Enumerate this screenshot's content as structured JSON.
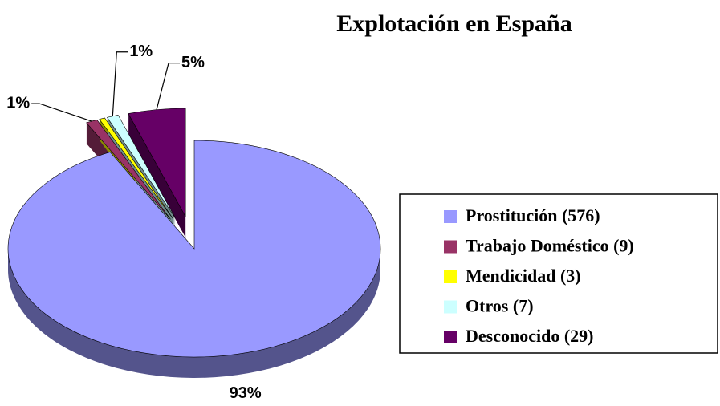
{
  "chart_data": {
    "type": "pie",
    "title": "Explotación en España",
    "series": [
      {
        "name": "Prostitución (576)",
        "color": "#9999ff"
      },
      {
        "name": "Trabajo Doméstico (9)",
        "color": "#993366"
      },
      {
        "name": "Mendicidad (3)",
        "color": "#ffff00"
      },
      {
        "name": "Otros (7)",
        "color": "#ccffff"
      },
      {
        "name": "Desconocido (29)",
        "color": "#660066"
      }
    ],
    "values": [
      93,
      1,
      0.5,
      1,
      5
    ],
    "value_labels": [
      "93%",
      "1%",
      null,
      "1%",
      "5%"
    ],
    "legend": "right"
  }
}
